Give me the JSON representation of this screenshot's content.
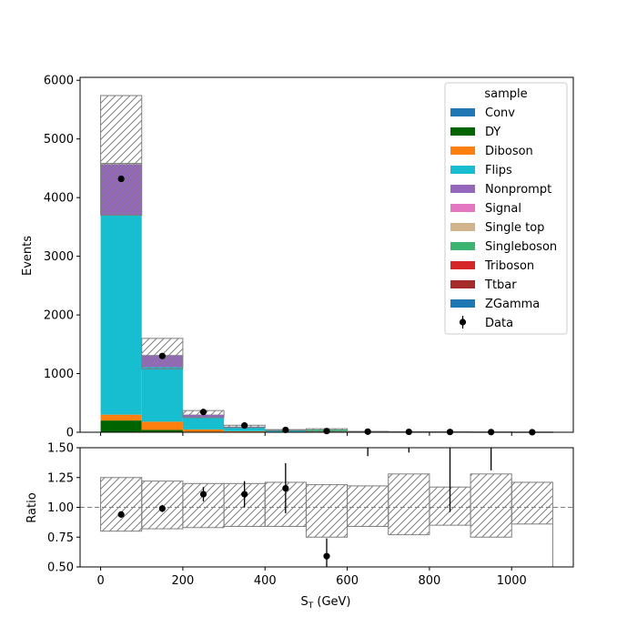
{
  "chart_data": [
    {
      "type": "bar",
      "stacked": true,
      "bin_edges": [
        0,
        100,
        200,
        300,
        400,
        500,
        600,
        700,
        800,
        900,
        1000,
        1100
      ],
      "ylabel": "Events",
      "xlim": [
        -50,
        1150
      ],
      "ylim": [
        0,
        6050
      ],
      "yticks": [
        0,
        1000,
        2000,
        3000,
        4000,
        5000,
        6000
      ],
      "legend": {
        "title": "sample",
        "placement": "top-right"
      },
      "series": [
        {
          "name": "Conv",
          "color": "#1f77b4",
          "values": [
            0,
            0,
            0,
            0,
            0,
            0,
            0,
            0,
            0,
            0,
            0
          ]
        },
        {
          "name": "DY",
          "color": "#006400",
          "values": [
            200,
            40,
            8,
            3,
            1,
            1,
            0,
            0,
            0,
            0,
            0
          ]
        },
        {
          "name": "Diboson",
          "color": "#ff7f0e",
          "values": [
            100,
            140,
            40,
            15,
            6,
            3,
            1,
            1,
            0,
            0,
            0
          ]
        },
        {
          "name": "Flips",
          "color": "#17becf",
          "values": [
            3400,
            930,
            200,
            60,
            20,
            8,
            3,
            2,
            1,
            1,
            0
          ]
        },
        {
          "name": "Nonprompt",
          "color": "#9467bd",
          "values": [
            870,
            200,
            50,
            18,
            8,
            5,
            2,
            2,
            1,
            1,
            0
          ]
        },
        {
          "name": "Signal",
          "color": "#e377c2",
          "values": [
            0,
            0,
            0,
            0,
            0,
            0,
            0,
            0,
            0,
            0,
            0
          ]
        },
        {
          "name": "Single top",
          "color": "#d2b48c",
          "values": [
            5,
            2,
            1,
            0,
            0,
            0,
            0,
            0,
            0,
            0,
            0
          ]
        },
        {
          "name": "Singleboson",
          "color": "#3cb371",
          "values": [
            10,
            5,
            3,
            2,
            1,
            30,
            1,
            1,
            0,
            0,
            0
          ]
        },
        {
          "name": "Triboson",
          "color": "#d62728",
          "values": [
            0,
            0,
            0,
            0,
            0,
            0,
            0,
            0,
            0,
            0,
            0
          ]
        },
        {
          "name": "Ttbar",
          "color": "#a52a2a",
          "values": [
            5,
            2,
            1,
            0,
            0,
            0,
            0,
            0,
            0,
            0,
            0
          ]
        },
        {
          "name": "ZGamma",
          "color": "#1f77b4",
          "values": [
            0,
            0,
            0,
            0,
            0,
            0,
            0,
            0,
            0,
            0,
            0
          ]
        }
      ],
      "uncertainty_band": {
        "low": [
          3700,
          1080,
          250,
          80,
          30,
          10,
          5,
          3,
          2,
          1,
          1
        ],
        "high": [
          5740,
          1600,
          370,
          120,
          45,
          60,
          15,
          10,
          8,
          6,
          4
        ]
      },
      "data_points": {
        "name": "Data",
        "x": [
          50,
          150,
          250,
          350,
          450,
          550,
          650,
          750,
          850,
          950,
          1050
        ],
        "y": [
          4320,
          1300,
          345,
          115,
          40,
          20,
          10,
          7,
          5,
          3,
          1
        ]
      }
    },
    {
      "type": "scatter",
      "xlabel": "S",
      "xlabel_sub": "T",
      "xlabel_unit": " (GeV)",
      "ylabel": "Ratio",
      "xlim": [
        -50,
        1150
      ],
      "ylim": [
        0.5,
        1.5
      ],
      "xticks": [
        0,
        200,
        400,
        600,
        800,
        1000
      ],
      "yticks": [
        0.5,
        0.75,
        1.0,
        1.25,
        1.5
      ],
      "ytick_labels": [
        "0.50",
        "0.75",
        "1.00",
        "1.25",
        "1.50"
      ],
      "reference_line": 1.0,
      "band": {
        "bin_edges": [
          0,
          100,
          200,
          300,
          400,
          500,
          600,
          700,
          800,
          900,
          1000,
          1100
        ],
        "low": [
          0.8,
          0.82,
          0.83,
          0.84,
          0.84,
          0.75,
          0.84,
          0.77,
          0.85,
          0.75,
          0.86
        ],
        "high": [
          1.25,
          1.22,
          1.2,
          1.2,
          1.21,
          1.19,
          1.18,
          1.28,
          1.17,
          1.28,
          1.21
        ]
      },
      "points": [
        {
          "x": 50,
          "y": 0.94,
          "err_low": 0.02,
          "err_high": 0.02
        },
        {
          "x": 150,
          "y": 0.99,
          "err_low": 0.03,
          "err_high": 0.03
        },
        {
          "x": 250,
          "y": 1.11,
          "err_low": 0.06,
          "err_high": 0.06
        },
        {
          "x": 350,
          "y": 1.11,
          "err_low": 0.11,
          "err_high": 0.11
        },
        {
          "x": 450,
          "y": 1.16,
          "err_low": 0.21,
          "err_high": 0.21
        },
        {
          "x": 550,
          "y": 0.59,
          "err_low": 0.15,
          "err_high": 0.15
        },
        {
          "x": 650,
          "y": null,
          "err_low": 0.0,
          "err_high": 0.0,
          "err_line_low": 1.43
        },
        {
          "x": 750,
          "y": null,
          "err_low": 0.0,
          "err_high": 0.0,
          "err_line_low": 1.46
        },
        {
          "x": 850,
          "y": null,
          "err_low": 0.0,
          "err_high": 0.0,
          "err_line_low": 0.96
        },
        {
          "x": 950,
          "y": null,
          "err_low": 0.0,
          "err_high": 0.0,
          "err_line_low": 1.31
        },
        {
          "x": 1050,
          "y": null,
          "err_low": 0.0,
          "err_high": 0.0,
          "err_line_low": null
        }
      ]
    }
  ]
}
